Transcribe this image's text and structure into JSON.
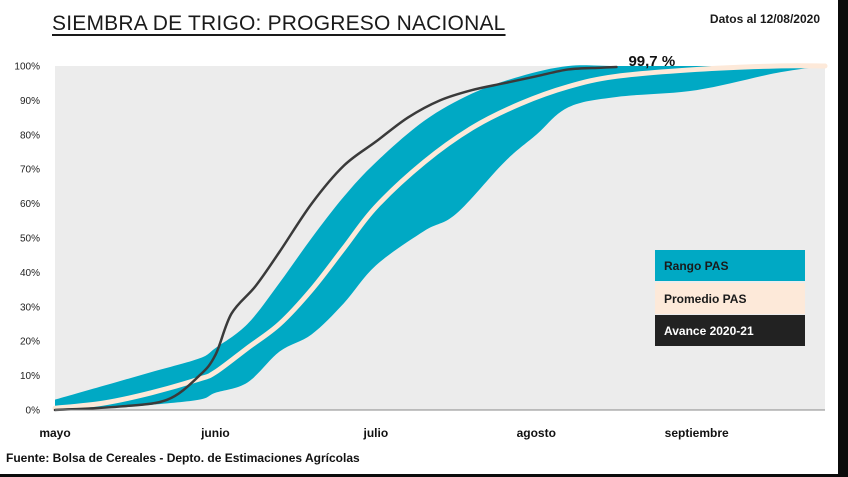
{
  "header": {
    "title": "SIEMBRA DE TRIGO: PROGRESO NACIONAL",
    "date_note": "Datos al 12/08/2020"
  },
  "footer": {
    "source": "Fuente: Bolsa de Cereales - Depto. de Estimaciones Agrícolas"
  },
  "chart_data": {
    "type": "area",
    "title": "SIEMBRA DE TRIGO: PROGRESO NACIONAL",
    "xlabel": "",
    "ylabel": "",
    "x_ticks": [
      "mayo",
      "junio",
      "julio",
      "agosto",
      "septiembre"
    ],
    "x_unit": "months since start of May",
    "xlim": [
      0,
      4.8
    ],
    "y_ticks": [
      "0%",
      "10%",
      "20%",
      "30%",
      "40%",
      "50%",
      "60%",
      "70%",
      "80%",
      "90%",
      "100%"
    ],
    "ylim": [
      0,
      100
    ],
    "grid": false,
    "legend_position": "right",
    "colors": {
      "range": "#00a9c4",
      "average": "#fde9d9",
      "current": "#3a3a3a",
      "plot_bg": "#ececec",
      "legend_dark": "#222222"
    },
    "series": [
      {
        "name": "Rango PAS",
        "kind": "band",
        "upper": {
          "x": [
            0,
            0.3,
            0.6,
            0.9,
            1.0,
            1.2,
            1.4,
            1.6,
            1.8,
            2.0,
            2.3,
            2.6,
            2.9,
            3.2,
            3.5,
            4.0,
            4.5,
            4.8
          ],
          "y": [
            3,
            7,
            11,
            15,
            18,
            25,
            37,
            50,
            62,
            72,
            84,
            92,
            97,
            100,
            100,
            100,
            100,
            100
          ]
        },
        "lower": {
          "x": [
            0,
            0.3,
            0.6,
            0.9,
            1.0,
            1.2,
            1.4,
            1.6,
            1.8,
            2.0,
            2.3,
            2.5,
            2.8,
            3.0,
            3.2,
            3.5,
            4.0,
            4.5,
            4.8
          ],
          "y": [
            0,
            0.5,
            1.5,
            3,
            5,
            8,
            17,
            22,
            31,
            42,
            52,
            57,
            72,
            80,
            88,
            91,
            93,
            98,
            100
          ]
        }
      },
      {
        "name": "Promedio PAS",
        "kind": "line",
        "x": [
          0,
          0.3,
          0.6,
          0.9,
          1.0,
          1.2,
          1.4,
          1.6,
          1.8,
          2.0,
          2.3,
          2.6,
          2.9,
          3.2,
          3.5,
          4.0,
          4.5,
          4.8
        ],
        "y": [
          0.5,
          2,
          5,
          9,
          11,
          18,
          25,
          35,
          47,
          59,
          72,
          82,
          89,
          94,
          97,
          99,
          100,
          100
        ]
      },
      {
        "name": "Avance 2020-21",
        "kind": "line",
        "x": [
          0,
          0.4,
          0.7,
          0.9,
          1.0,
          1.1,
          1.25,
          1.4,
          1.6,
          1.8,
          2.0,
          2.2,
          2.4,
          2.6,
          2.8,
          3.0,
          3.2,
          3.4,
          3.5
        ],
        "y": [
          0,
          1,
          3,
          10,
          16,
          28,
          36,
          46,
          60,
          71,
          78,
          85,
          90,
          93,
          95,
          97,
          99,
          99.5,
          99.7
        ]
      }
    ],
    "annotations": [
      {
        "text": "99,7 %",
        "x": 3.5,
        "y": 99.7
      }
    ]
  }
}
